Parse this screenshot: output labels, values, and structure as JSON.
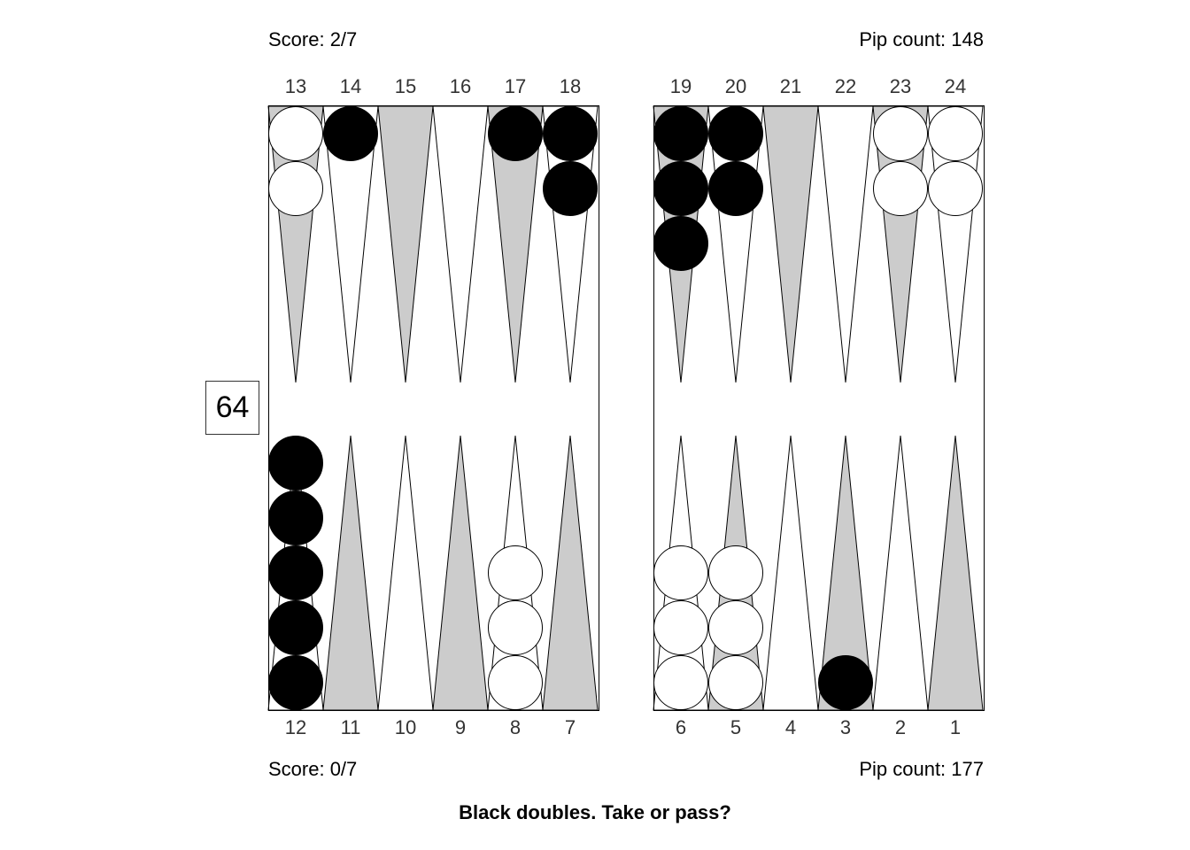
{
  "top_player": {
    "score_label": "Score: 2/7",
    "pip_label": "Pip count: 148"
  },
  "bottom_player": {
    "score_label": "Score: 0/7",
    "pip_label": "Pip count: 177"
  },
  "cube_value": "64",
  "prompt": "Black doubles. Take or pass?",
  "top_point_labels": [
    "13",
    "14",
    "15",
    "16",
    "17",
    "18",
    "19",
    "20",
    "21",
    "22",
    "23",
    "24"
  ],
  "bottom_point_labels": [
    "12",
    "11",
    "10",
    "9",
    "8",
    "7",
    "6",
    "5",
    "4",
    "3",
    "2",
    "1"
  ],
  "colors": {
    "triangle_shaded": "#cccccc",
    "triangle_plain": "#ffffff",
    "black_checker": "#000000",
    "white_checker": "#ffffff",
    "outline": "#000000"
  },
  "checkers": [
    {
      "point": 13,
      "color": "white",
      "count": 2
    },
    {
      "point": 14,
      "color": "black",
      "count": 1
    },
    {
      "point": 17,
      "color": "black",
      "count": 1
    },
    {
      "point": 18,
      "color": "black",
      "count": 2
    },
    {
      "point": 19,
      "color": "black",
      "count": 3
    },
    {
      "point": 20,
      "color": "black",
      "count": 2
    },
    {
      "point": 23,
      "color": "white",
      "count": 2
    },
    {
      "point": 24,
      "color": "white",
      "count": 2
    },
    {
      "point": 12,
      "color": "black",
      "count": 5
    },
    {
      "point": 8,
      "color": "white",
      "count": 3
    },
    {
      "point": 6,
      "color": "white",
      "count": 3
    },
    {
      "point": 5,
      "color": "white",
      "count": 3
    },
    {
      "point": 3,
      "color": "black",
      "count": 1
    }
  ]
}
